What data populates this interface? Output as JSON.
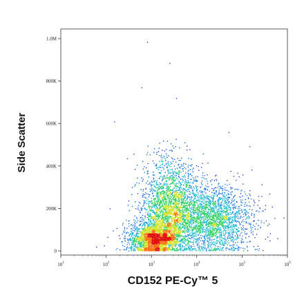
{
  "chart_data": {
    "type": "scatter",
    "style": "density-colored flow cytometry dot plot",
    "xlabel": "CD152 PE-Cy™ 5",
    "ylabel": "Side Scatter",
    "x_scale": "log",
    "xlim": [
      10,
      1000000
    ],
    "x_ticks": [
      {
        "value": 10,
        "base": "10",
        "exp": "1"
      },
      {
        "value": 100,
        "base": "10",
        "exp": "2"
      },
      {
        "value": 1000,
        "base": "10",
        "exp": "3"
      },
      {
        "value": 10000,
        "base": "10",
        "exp": "4"
      },
      {
        "value": 100000,
        "base": "10",
        "exp": "5"
      },
      {
        "value": 1000000,
        "base": "10",
        "exp": "6"
      }
    ],
    "y_scale": "linear",
    "ylim": [
      0,
      1000000
    ],
    "y_ticks": [
      {
        "value": 0,
        "label": "0"
      },
      {
        "value": 200000,
        "label": "200K"
      },
      {
        "value": 400000,
        "label": "400K"
      },
      {
        "value": 600000,
        "label": "600K"
      },
      {
        "value": 800000,
        "label": "800K"
      },
      {
        "value": 1000000,
        "label": "1.0M"
      }
    ],
    "grid": false,
    "legend": "none",
    "density_colors": [
      "#1020c8",
      "#1070e0",
      "#18b8d0",
      "#30d060",
      "#d0e020",
      "#ff7010",
      "#e01010"
    ],
    "populations": [
      {
        "center_x": 1200,
        "center_y": 60000,
        "spread_log_x": 0.28,
        "spread_y": 40000
      },
      {
        "center_x": 2500,
        "center_y": 220000,
        "spread_log_x": 0.3,
        "spread_y": 110000
      },
      {
        "center_x": 20000,
        "center_y": 150000,
        "spread_log_x": 0.45,
        "spread_y": 80000
      }
    ],
    "outliers": [
      {
        "x": 800,
        "y": 985000
      },
      {
        "x": 2500,
        "y": 885000
      },
      {
        "x": 600,
        "y": 770000
      },
      {
        "x": 3500,
        "y": 720000
      },
      {
        "x": 150,
        "y": 610000
      },
      {
        "x": 50000,
        "y": 560000
      },
      {
        "x": 120,
        "y": 200000
      },
      {
        "x": 60,
        "y": 20000
      },
      {
        "x": 400000,
        "y": 270000
      },
      {
        "x": 600000,
        "y": 60000
      }
    ]
  }
}
